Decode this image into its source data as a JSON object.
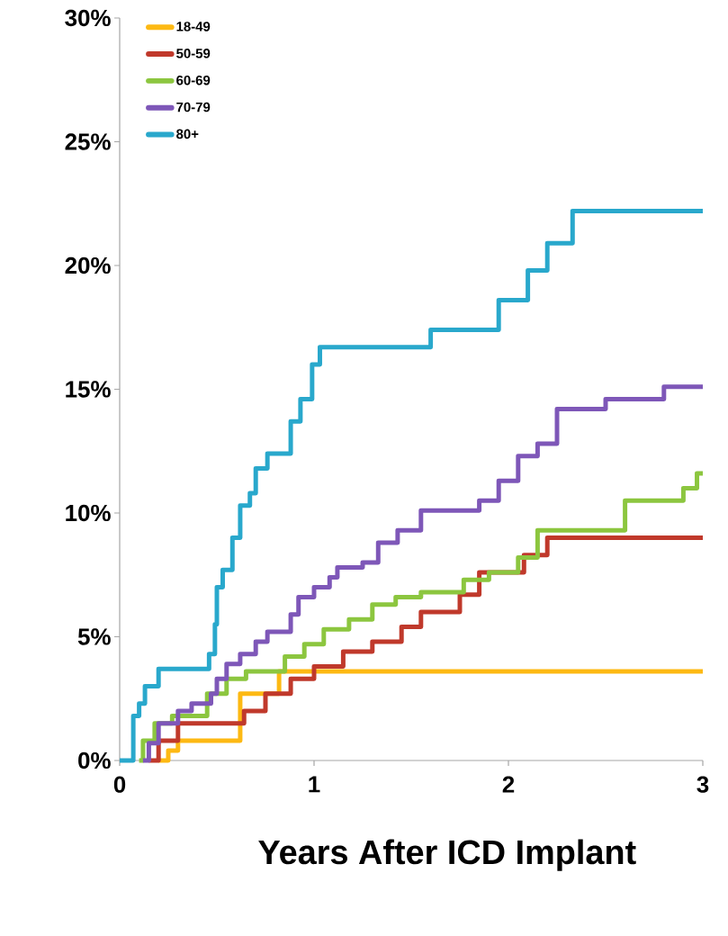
{
  "chart_data": {
    "type": "step",
    "xlabel": "Years After ICD Implant",
    "xlim": [
      0,
      3
    ],
    "ylim": [
      0,
      30
    ],
    "xticks": [
      0,
      1,
      2,
      3
    ],
    "yticks": [
      {
        "value": 0,
        "label": "0%"
      },
      {
        "value": 5,
        "label": "5%"
      },
      {
        "value": 10,
        "label": "10%"
      },
      {
        "value": 15,
        "label": "15%"
      },
      {
        "value": 20,
        "label": "20%"
      },
      {
        "value": 25,
        "label": "25%"
      },
      {
        "value": 30,
        "label": "30%"
      }
    ],
    "legend": "top left",
    "grid": false,
    "marker": "none",
    "line_style": "solid",
    "series": [
      {
        "name": "18-49",
        "color": "#fdb913",
        "x": [
          0.2,
          0.25,
          0.3,
          0.62,
          0.82,
          3.0
        ],
        "values": [
          0,
          0.4,
          0.8,
          2.7,
          3.6,
          3.6
        ]
      },
      {
        "name": "50-59",
        "color": "#c0392b",
        "x": [
          0.15,
          0.2,
          0.3,
          0.64,
          0.75,
          0.88,
          1.0,
          1.15,
          1.3,
          1.45,
          1.55,
          1.75,
          1.85,
          2.08,
          2.2,
          3.0
        ],
        "values": [
          0,
          0.8,
          1.5,
          2.0,
          2.7,
          3.3,
          3.8,
          4.4,
          4.8,
          5.4,
          6.0,
          6.7,
          7.6,
          8.3,
          9.0,
          9.0
        ]
      },
      {
        "name": "60-69",
        "color": "#8cc63f",
        "x": [
          0.1,
          0.12,
          0.18,
          0.27,
          0.45,
          0.55,
          0.65,
          0.85,
          0.95,
          1.05,
          1.18,
          1.3,
          1.42,
          1.55,
          1.77,
          1.9,
          2.05,
          2.15,
          2.6,
          2.9,
          2.97,
          3.0
        ],
        "values": [
          0,
          0.8,
          1.5,
          1.8,
          2.7,
          3.3,
          3.6,
          4.2,
          4.7,
          5.3,
          5.7,
          6.3,
          6.6,
          6.8,
          7.3,
          7.6,
          8.2,
          9.3,
          10.5,
          11.0,
          11.6,
          11.6
        ]
      },
      {
        "name": "70-79",
        "color": "#7e57b8",
        "x": [
          0.12,
          0.15,
          0.2,
          0.3,
          0.37,
          0.47,
          0.5,
          0.55,
          0.62,
          0.7,
          0.76,
          0.88,
          0.92,
          1.0,
          1.08,
          1.12,
          1.25,
          1.33,
          1.43,
          1.55,
          1.85,
          1.95,
          2.05,
          2.15,
          2.25,
          2.5,
          2.8,
          3.0
        ],
        "values": [
          0,
          0.7,
          1.5,
          2.0,
          2.3,
          2.7,
          3.3,
          3.9,
          4.3,
          4.8,
          5.2,
          5.9,
          6.6,
          7.0,
          7.4,
          7.8,
          8.0,
          8.8,
          9.3,
          10.1,
          10.5,
          11.3,
          12.3,
          12.8,
          14.2,
          14.6,
          15.1,
          15.1
        ]
      },
      {
        "name": "80+",
        "color": "#29a8cc",
        "x": [
          0.0,
          0.07,
          0.1,
          0.13,
          0.2,
          0.46,
          0.49,
          0.5,
          0.53,
          0.58,
          0.62,
          0.67,
          0.7,
          0.76,
          0.88,
          0.93,
          0.99,
          1.03,
          1.6,
          1.95,
          2.1,
          2.2,
          2.33,
          3.0
        ],
        "values": [
          0,
          1.8,
          2.3,
          3.0,
          3.7,
          4.3,
          5.5,
          7.0,
          7.7,
          9.0,
          10.3,
          10.8,
          11.8,
          12.4,
          13.7,
          14.6,
          16.0,
          16.7,
          17.4,
          18.6,
          19.8,
          20.9,
          22.2,
          22.2
        ]
      }
    ]
  }
}
